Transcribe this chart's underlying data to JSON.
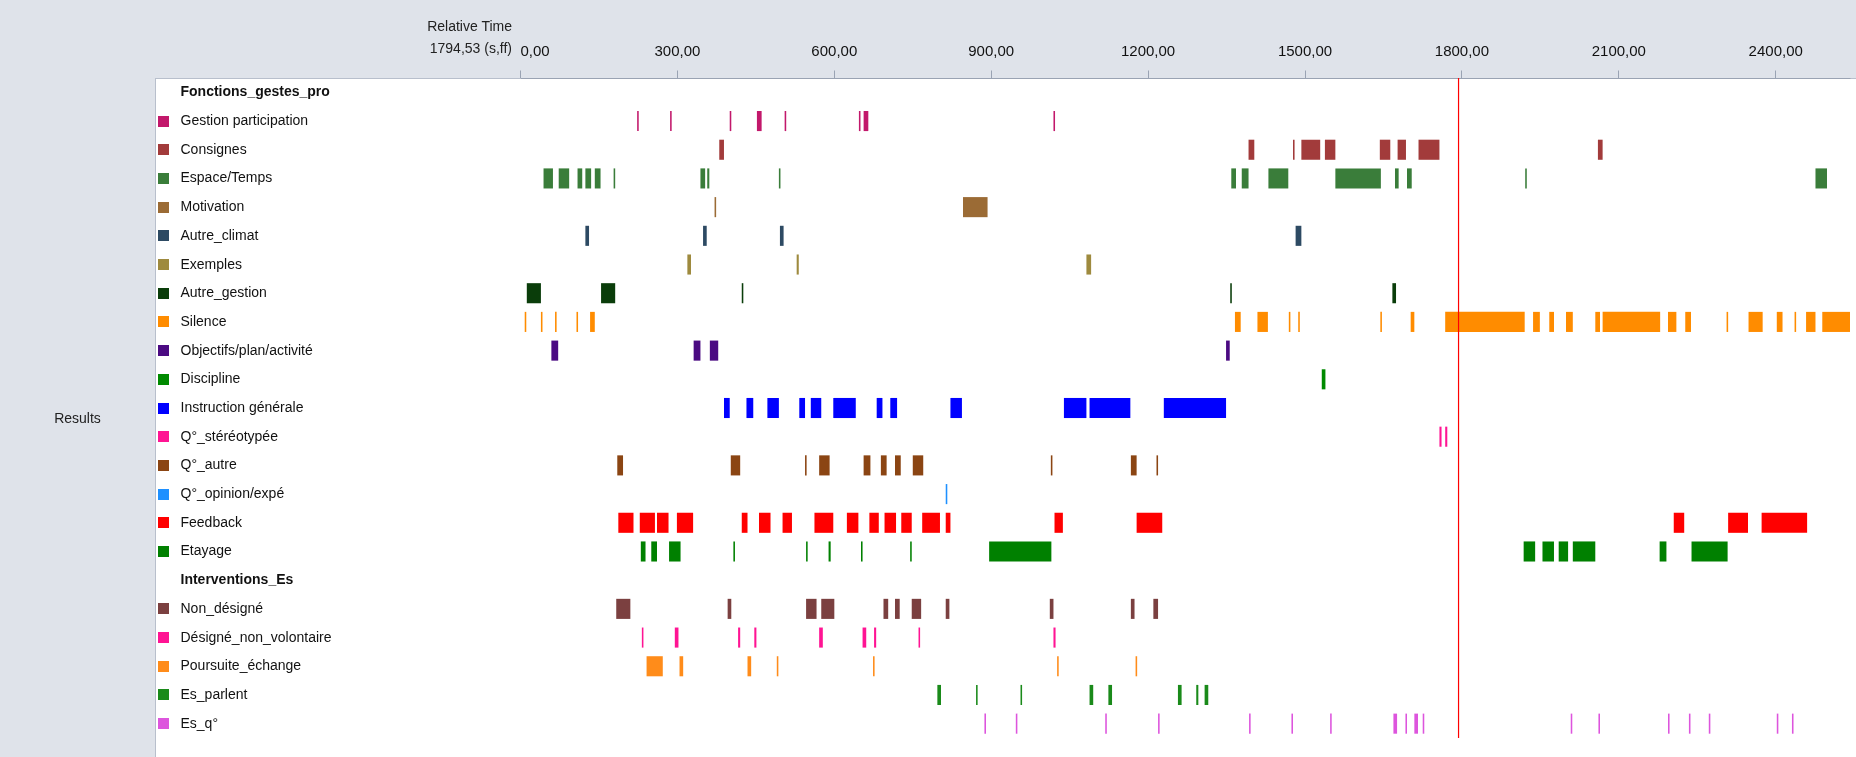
{
  "chart_data": {
    "type": "bar",
    "orientation": "horizontal",
    "grid": false,
    "legend": false,
    "categories": [
      "Fonctions_gestes_pro",
      "Gestion participation",
      "Consignes",
      "Espace/Temps",
      "Motivation",
      "Autre_climat",
      "Exemples",
      "Autre_gestion",
      "Silence",
      "Objectifs/plan/activité",
      "Discipline",
      "Instruction générale",
      "Q°_stéréotypée",
      "Q°_autre",
      "Q°_opinion/expé",
      "Feedback",
      "Etayage",
      "Interventions_Es",
      "Non_désigné",
      "Désigné_non_volontaire",
      "Poursuite_échange",
      "Es_parlent",
      "Es_q°"
    ],
    "colors": [
      null,
      "#c2186b",
      "#a23b3b",
      "#3a7d3a",
      "#9b6b35",
      "#2d4a63",
      "#9e8a3e",
      "#0a3d0a",
      "#ff8c00",
      "#4b0a82",
      "#008a00",
      "#0000ff",
      "#ff1493",
      "#8b4513",
      "#1e90ff",
      "#ff0000",
      "#008000",
      null,
      "#7b4040",
      "#ff1493",
      "#ff8c1a",
      "#1a8a1a",
      "#dd55dd"
    ],
    "xlim": [
      0,
      2543
    ],
    "xticks": [
      {
        "value": 0,
        "label": "0,00"
      },
      {
        "value": 300,
        "label": "300,00"
      },
      {
        "value": 600,
        "label": "600,00"
      },
      {
        "value": 900,
        "label": "900,00"
      },
      {
        "value": 1200,
        "label": "1200,00"
      },
      {
        "value": 1500,
        "label": "1500,00"
      },
      {
        "value": 1800,
        "label": "1800,00"
      },
      {
        "value": 2100,
        "label": "2100,00"
      },
      {
        "value": 2400,
        "label": "2400,00"
      }
    ],
    "ref_lines": [
      {
        "axis": "x",
        "value": 1794.53,
        "color": "#ff0000"
      }
    ],
    "annotations": [
      "Relative Time",
      "1794,53 (s,ff)",
      "Results"
    ],
    "series": [
      {
        "colors": [
          null,
          "#c2186b",
          "#a23b3b",
          "#3a7d3a",
          "#9b6b35",
          "#2d4a63",
          "#9e8a3e",
          "#0a3d0a",
          "#ff8c00",
          "#4b0a82",
          "#008a00",
          "#0000ff",
          "#ff1493",
          "#8b4513",
          "#1e90ff",
          "#ff0000",
          "#008000",
          null,
          "#7b4040",
          "#ff1493",
          "#ff8c1a",
          "#1a8a1a",
          "#dd55dd"
        ],
        "base": [
          null,
          224,
          381,
          45,
          372,
          125,
          320,
          13,
          9,
          60,
          1533,
          390,
          1758,
          186,
          814,
          188,
          231,
          null,
          184,
          233,
          242,
          798,
          888
        ],
        "values": [
          null,
          3,
          9,
          18,
          3,
          7,
          7,
          27,
          3,
          13,
          7,
          11,
          4,
          11,
          3,
          29,
          9,
          null,
          27,
          3,
          31,
          7,
          3
        ]
      },
      {
        "colors": [
          null,
          "#c2186b",
          "#a23b3b",
          "#3a7d3a",
          "#9b6b35",
          "#2d4a63",
          "#9e8a3e",
          "#0a3d0a",
          "#ff8c00",
          "#4b0a82",
          null,
          "#0000ff",
          "#ff1493",
          "#8b4513",
          null,
          "#ff0000",
          "#008000",
          null,
          "#7b4040",
          "#ff1493",
          "#ff8c1a",
          "#1a8a1a",
          "#dd55dd"
        ],
        "base": [
          null,
          287,
          1393,
          74,
          847,
          350,
          529,
          155,
          40,
          332,
          null,
          433,
          1769,
          403,
          null,
          229,
          251,
          null,
          397,
          296,
          305,
          872,
          948
        ],
        "values": [
          null,
          3,
          11,
          20,
          47,
          7,
          4,
          27,
          3,
          13,
          null,
          13,
          4,
          18,
          null,
          29,
          11,
          null,
          7,
          7,
          7,
          3,
          3
        ]
      },
      {
        "colors": [
          null,
          "#c2186b",
          "#a23b3b",
          "#3a7d3a",
          null,
          "#2d4a63",
          "#9e8a3e",
          "#0a3d0a",
          "#ff8c00",
          "#4b0a82",
          null,
          "#0000ff",
          null,
          "#8b4513",
          null,
          "#ff0000",
          "#008000",
          null,
          "#7b4040",
          "#ff1493",
          "#ff8c1a",
          "#1a8a1a",
          "#dd55dd"
        ],
        "base": [
          null,
          401,
          1478,
          110,
          null,
          497,
          1083,
          424,
          67,
          363,
          null,
          473,
          null,
          545,
          null,
          262,
          285,
          null,
          547,
          417,
          435,
          957,
          1119
        ],
        "values": [
          null,
          3,
          3,
          9,
          null,
          7,
          9,
          3,
          3,
          16,
          null,
          22,
          null,
          3,
          null,
          22,
          22,
          null,
          20,
          4,
          7,
          3,
          3
        ]
      },
      {
        "colors": [
          null,
          "#c2186b",
          "#a23b3b",
          "#3a7d3a",
          null,
          "#2d4a63",
          null,
          "#0a3d0a",
          "#ff8c00",
          "#4b0a82",
          null,
          "#0000ff",
          null,
          "#8b4513",
          null,
          "#ff0000",
          "#008000",
          null,
          "#7b4040",
          "#ff1493",
          "#ff8c1a",
          "#1a8a1a",
          "#dd55dd"
        ],
        "base": [
          null,
          453,
          1494,
          125,
          null,
          1483,
          null,
          1358,
          108,
          1350,
          null,
          534,
          null,
          572,
          null,
          300,
          408,
          null,
          576,
          448,
          491,
          1089,
          1220
        ],
        "values": [
          null,
          9,
          36,
          11,
          null,
          11,
          null,
          3,
          3,
          7,
          null,
          11,
          null,
          20,
          null,
          31,
          3,
          null,
          25,
          4,
          3,
          7,
          3
        ]
      },
      {
        "colors": [
          null,
          "#c2186b",
          "#a23b3b",
          "#3a7d3a",
          null,
          null,
          null,
          "#0a3d0a",
          "#ff8c00",
          null,
          null,
          "#0000ff",
          null,
          "#8b4513",
          null,
          "#ff0000",
          "#008000",
          null,
          "#7b4040",
          "#ff1493",
          "#ff8c1a",
          "#1a8a1a",
          "#dd55dd"
        ],
        "base": [
          null,
          506,
          1539,
          143,
          null,
          null,
          null,
          1668,
          134,
          null,
          null,
          556,
          null,
          657,
          null,
          424,
          547,
          null,
          695,
          572,
          675,
          1125,
          1394
        ],
        "values": [
          null,
          3,
          20,
          11,
          null,
          null,
          null,
          7,
          9,
          null,
          null,
          20,
          null,
          13,
          null,
          11,
          3,
          null,
          9,
          7,
          3,
          7,
          3
        ]
      },
      {
        "colors": [
          null,
          "#c2186b",
          "#a23b3b",
          "#3a7d3a",
          null,
          null,
          null,
          null,
          "#ff8c00",
          null,
          null,
          "#0000ff",
          null,
          "#8b4513",
          null,
          "#ff0000",
          "#008000",
          null,
          "#7b4040",
          "#ff1493",
          "#ff8c1a",
          "#1a8a1a",
          "#dd55dd"
        ],
        "base": [
          null,
          648,
          1644,
          179,
          null,
          null,
          null,
          null,
          1367,
          null,
          null,
          599,
          null,
          690,
          null,
          457,
          590,
          null,
          717,
          655,
          1027,
          1258,
          1475
        ],
        "values": [
          null,
          3,
          20,
          3,
          null,
          null,
          null,
          null,
          11,
          null,
          null,
          43,
          null,
          11,
          null,
          22,
          4,
          null,
          9,
          7,
          3,
          7,
          3
        ]
      },
      {
        "colors": [
          null,
          "#c2186b",
          "#a23b3b",
          "#3a7d3a",
          null,
          null,
          null,
          null,
          "#ff8c00",
          null,
          null,
          "#0000ff",
          null,
          "#8b4513",
          null,
          "#ff0000",
          "#008000",
          null,
          "#7b4040",
          "#ff1493",
          "#ff8c1a",
          "#1a8a1a",
          "#dd55dd"
        ],
        "base": [
          null,
          657,
          1678,
          345,
          null,
          null,
          null,
          null,
          1410,
          null,
          null,
          682,
          null,
          717,
          null,
          502,
          652,
          null,
          749,
          677,
          1177,
          1293,
          1549
        ],
        "values": [
          null,
          9,
          16,
          9,
          null,
          null,
          null,
          null,
          20,
          null,
          null,
          11,
          null,
          11,
          null,
          18,
          3,
          null,
          18,
          4,
          3,
          4,
          3
        ]
      },
      {
        "colors": [
          null,
          "#c2186b",
          "#a23b3b",
          "#3a7d3a",
          null,
          null,
          null,
          null,
          "#ff8c00",
          null,
          null,
          "#0000ff",
          null,
          "#8b4513",
          null,
          "#ff0000",
          "#008000",
          null,
          "#7b4040",
          "#ff1493",
          null,
          "#1a8a1a",
          "#dd55dd"
        ],
        "base": [
          null,
          1020,
          1718,
          358,
          null,
          null,
          null,
          null,
          1470,
          null,
          null,
          708,
          null,
          751,
          null,
          563,
          746,
          null,
          814,
          762,
          null,
          1309,
          1670
        ],
        "values": [
          null,
          3,
          40,
          4,
          null,
          null,
          null,
          null,
          3,
          null,
          null,
          13,
          null,
          20,
          null,
          36,
          3,
          null,
          7,
          3,
          null,
          7,
          7
        ]
      },
      {
        "colors": [
          null,
          null,
          "#a23b3b",
          "#3a7d3a",
          null,
          null,
          null,
          null,
          "#ff8c00",
          null,
          null,
          "#0000ff",
          null,
          "#8b4513",
          null,
          "#ff0000",
          "#008000",
          null,
          "#7b4040",
          "#ff1493",
          null,
          null,
          "#dd55dd"
        ],
        "base": [
          null,
          null,
          2061,
          495,
          null,
          null,
          null,
          null,
          1488,
          null,
          null,
          823,
          null,
          1015,
          null,
          625,
          897,
          null,
          1013,
          1020,
          null,
          null,
          1693
        ],
        "values": [
          null,
          null,
          9,
          3,
          null,
          null,
          null,
          null,
          3,
          null,
          null,
          22,
          null,
          3,
          null,
          22,
          119,
          null,
          7,
          4,
          null,
          null,
          3
        ]
      },
      {
        "colors": [
          null,
          null,
          null,
          "#3a7d3a",
          null,
          null,
          null,
          null,
          "#ff8c00",
          null,
          null,
          "#0000ff",
          null,
          "#8b4513",
          null,
          "#ff0000",
          "#008000",
          null,
          "#7b4040",
          null,
          null,
          null,
          "#dd55dd"
        ],
        "base": [
          null,
          null,
          null,
          1360,
          null,
          null,
          null,
          null,
          1645,
          null,
          null,
          1040,
          null,
          1168,
          null,
          668,
          1919,
          null,
          1168,
          null,
          null,
          null,
          1710
        ],
        "values": [
          null,
          null,
          null,
          9,
          null,
          null,
          null,
          null,
          3,
          null,
          null,
          43,
          null,
          11,
          null,
          18,
          22,
          null,
          7,
          null,
          null,
          null,
          7
        ]
      },
      {
        "colors": [
          null,
          null,
          null,
          "#3a7d3a",
          null,
          null,
          null,
          null,
          "#ff8c00",
          null,
          null,
          "#0000ff",
          null,
          "#8b4513",
          null,
          "#ff0000",
          "#008000",
          null,
          "#7b4040",
          null,
          null,
          null,
          "#dd55dd"
        ],
        "base": [
          null,
          null,
          null,
          1380,
          null,
          null,
          null,
          null,
          1703,
          null,
          null,
          1089,
          null,
          1217,
          null,
          697,
          1955,
          null,
          1211,
          null,
          null,
          null,
          1726
        ],
        "values": [
          null,
          null,
          null,
          13,
          null,
          null,
          null,
          null,
          7,
          null,
          null,
          78,
          null,
          3,
          null,
          22,
          22,
          null,
          9,
          null,
          null,
          null,
          3
        ]
      },
      {
        "colors": [
          null,
          null,
          null,
          "#3a7d3a",
          null,
          null,
          null,
          null,
          "#ff8c00",
          null,
          null,
          "#0000ff",
          null,
          null,
          null,
          "#ff0000",
          "#008000",
          null,
          null,
          null,
          null,
          null,
          "#dd55dd"
        ],
        "base": [
          null,
          null,
          null,
          1431,
          null,
          null,
          null,
          null,
          1769,
          null,
          null,
          1231,
          null,
          null,
          null,
          729,
          1986,
          null,
          null,
          null,
          null,
          null,
          2009
        ],
        "values": [
          null,
          null,
          null,
          38,
          null,
          null,
          null,
          null,
          152,
          null,
          null,
          119,
          null,
          null,
          null,
          20,
          18,
          null,
          null,
          null,
          null,
          null,
          3
        ]
      },
      {
        "colors": [
          null,
          null,
          null,
          "#3a7d3a",
          null,
          null,
          null,
          null,
          "#ff8c00",
          null,
          null,
          null,
          null,
          null,
          null,
          "#ff0000",
          "#008000",
          null,
          null,
          null,
          null,
          null,
          "#dd55dd"
        ],
        "base": [
          null,
          null,
          null,
          1559,
          null,
          null,
          null,
          null,
          1937,
          null,
          null,
          null,
          null,
          null,
          null,
          769,
          2013,
          null,
          null,
          null,
          null,
          null,
          2062
        ],
        "values": [
          null,
          null,
          null,
          87,
          null,
          null,
          null,
          null,
          13,
          null,
          null,
          null,
          null,
          null,
          null,
          34,
          43,
          null,
          null,
          null,
          null,
          null,
          3
        ]
      },
      {
        "colors": [
          null,
          null,
          null,
          "#3a7d3a",
          null,
          null,
          null,
          null,
          "#ff8c00",
          null,
          null,
          null,
          null,
          null,
          null,
          "#ff0000",
          "#008000",
          null,
          null,
          null,
          null,
          null,
          "#dd55dd"
        ],
        "base": [
          null,
          null,
          null,
          1673,
          null,
          null,
          null,
          null,
          1968,
          null,
          null,
          null,
          null,
          null,
          null,
          814,
          2179,
          null,
          null,
          null,
          null,
          null,
          2195
        ],
        "values": [
          null,
          null,
          null,
          7,
          null,
          null,
          null,
          null,
          9,
          null,
          null,
          null,
          null,
          null,
          null,
          9,
          13,
          null,
          null,
          null,
          null,
          null,
          3
        ]
      },
      {
        "colors": [
          null,
          null,
          null,
          "#3a7d3a",
          null,
          null,
          null,
          null,
          "#ff8c00",
          null,
          null,
          null,
          null,
          null,
          null,
          "#ff0000",
          "#008000",
          null,
          null,
          null,
          null,
          null,
          "#dd55dd"
        ],
        "base": [
          null,
          null,
          null,
          1696,
          null,
          null,
          null,
          null,
          2000,
          null,
          null,
          null,
          null,
          null,
          null,
          1022,
          2240,
          null,
          null,
          null,
          null,
          null,
          2235
        ],
        "values": [
          null,
          null,
          null,
          9,
          null,
          null,
          null,
          null,
          13,
          null,
          null,
          null,
          null,
          null,
          null,
          16,
          69,
          null,
          null,
          null,
          null,
          null,
          3
        ]
      },
      {
        "colors": [
          null,
          null,
          null,
          "#3a7d3a",
          null,
          null,
          null,
          null,
          "#ff8c00",
          null,
          null,
          null,
          null,
          null,
          null,
          "#ff0000",
          null,
          null,
          null,
          null,
          null,
          null,
          "#dd55dd"
        ],
        "base": [
          null,
          null,
          null,
          1922,
          null,
          null,
          null,
          null,
          2056,
          null,
          null,
          null,
          null,
          null,
          null,
          1179,
          null,
          null,
          null,
          null,
          null,
          null,
          2273
        ],
        "values": [
          null,
          null,
          null,
          3,
          null,
          null,
          null,
          null,
          9,
          null,
          null,
          null,
          null,
          null,
          null,
          49,
          null,
          null,
          null,
          null,
          null,
          null,
          3
        ]
      },
      {
        "colors": [
          null,
          null,
          null,
          "#3a7d3a",
          null,
          null,
          null,
          null,
          "#ff8c00",
          null,
          null,
          null,
          null,
          null,
          null,
          "#ff0000",
          null,
          null,
          null,
          null,
          null,
          null,
          "#dd55dd"
        ],
        "base": [
          null,
          null,
          null,
          2477,
          null,
          null,
          null,
          null,
          2070,
          null,
          null,
          null,
          null,
          null,
          null,
          2206,
          null,
          null,
          null,
          null,
          null,
          null,
          2403
        ],
        "values": [
          null,
          null,
          null,
          22,
          null,
          null,
          null,
          null,
          110,
          null,
          null,
          null,
          null,
          null,
          null,
          20,
          null,
          null,
          null,
          null,
          null,
          null,
          3
        ]
      },
      {
        "colors": [
          null,
          null,
          null,
          null,
          null,
          null,
          null,
          null,
          "#ff8c00",
          null,
          null,
          null,
          null,
          null,
          null,
          "#ff0000",
          null,
          null,
          null,
          null,
          null,
          null,
          "#dd55dd"
        ],
        "base": [
          null,
          null,
          null,
          null,
          null,
          null,
          null,
          null,
          2195,
          null,
          null,
          null,
          null,
          null,
          null,
          2310,
          null,
          null,
          null,
          null,
          null,
          null,
          2432
        ],
        "values": [
          null,
          null,
          null,
          null,
          null,
          null,
          null,
          null,
          16,
          null,
          null,
          null,
          null,
          null,
          null,
          38,
          null,
          null,
          null,
          null,
          null,
          null,
          3
        ]
      },
      {
        "colors": [
          null,
          null,
          null,
          null,
          null,
          null,
          null,
          null,
          "#ff8c00",
          null,
          null,
          null,
          null,
          null,
          null,
          "#ff0000",
          null,
          null,
          null,
          null,
          null,
          null,
          null
        ],
        "base": [
          null,
          null,
          null,
          null,
          null,
          null,
          null,
          null,
          2228,
          null,
          null,
          null,
          null,
          null,
          null,
          2374,
          null,
          null,
          null,
          null,
          null,
          null,
          null
        ],
        "values": [
          null,
          null,
          null,
          null,
          null,
          null,
          null,
          null,
          11,
          null,
          null,
          null,
          null,
          null,
          null,
          87,
          null,
          null,
          null,
          null,
          null,
          null,
          null
        ]
      },
      {
        "color": "#ff8c00",
        "base": [
          null,
          null,
          null,
          null,
          null,
          null,
          null,
          null,
          2307,
          null,
          null,
          null,
          null,
          null,
          null,
          null,
          null,
          null,
          null,
          null,
          null,
          null,
          null
        ],
        "values": [
          null,
          null,
          null,
          null,
          null,
          null,
          null,
          null,
          3,
          null,
          null,
          null,
          null,
          null,
          null,
          null,
          null,
          null,
          null,
          null,
          null,
          null,
          null
        ]
      },
      {
        "color": "#ff8c00",
        "base": [
          null,
          null,
          null,
          null,
          null,
          null,
          null,
          null,
          2349,
          null,
          null,
          null,
          null,
          null,
          null,
          null,
          null,
          null,
          null,
          null,
          null,
          null,
          null
        ],
        "values": [
          null,
          null,
          null,
          null,
          null,
          null,
          null,
          null,
          27,
          null,
          null,
          null,
          null,
          null,
          null,
          null,
          null,
          null,
          null,
          null,
          null,
          null,
          null
        ]
      },
      {
        "color": "#ff8c00",
        "base": [
          null,
          null,
          null,
          null,
          null,
          null,
          null,
          null,
          2403,
          null,
          null,
          null,
          null,
          null,
          null,
          null,
          null,
          null,
          null,
          null,
          null,
          null,
          null
        ],
        "values": [
          null,
          null,
          null,
          null,
          null,
          null,
          null,
          null,
          11,
          null,
          null,
          null,
          null,
          null,
          null,
          null,
          null,
          null,
          null,
          null,
          null,
          null,
          null
        ]
      },
      {
        "color": "#ff8c00",
        "base": [
          null,
          null,
          null,
          null,
          null,
          null,
          null,
          null,
          2437,
          null,
          null,
          null,
          null,
          null,
          null,
          null,
          null,
          null,
          null,
          null,
          null,
          null,
          null
        ],
        "values": [
          null,
          null,
          null,
          null,
          null,
          null,
          null,
          null,
          3,
          null,
          null,
          null,
          null,
          null,
          null,
          null,
          null,
          null,
          null,
          null,
          null,
          null,
          null
        ]
      },
      {
        "color": "#ff8c00",
        "base": [
          null,
          null,
          null,
          null,
          null,
          null,
          null,
          null,
          2459,
          null,
          null,
          null,
          null,
          null,
          null,
          null,
          null,
          null,
          null,
          null,
          null,
          null,
          null
        ],
        "values": [
          null,
          null,
          null,
          null,
          null,
          null,
          null,
          null,
          18,
          null,
          null,
          null,
          null,
          null,
          null,
          null,
          null,
          null,
          null,
          null,
          null,
          null,
          null
        ]
      },
      {
        "color": "#ff8c00",
        "base": [
          null,
          null,
          null,
          null,
          null,
          null,
          null,
          null,
          2490,
          null,
          null,
          null,
          null,
          null,
          null,
          null,
          null,
          null,
          null,
          null,
          null,
          null,
          null
        ],
        "values": [
          null,
          null,
          null,
          null,
          null,
          null,
          null,
          null,
          53,
          null,
          null,
          null,
          null,
          null,
          null,
          null,
          null,
          null,
          null,
          null,
          null,
          null,
          null
        ]
      }
    ]
  }
}
